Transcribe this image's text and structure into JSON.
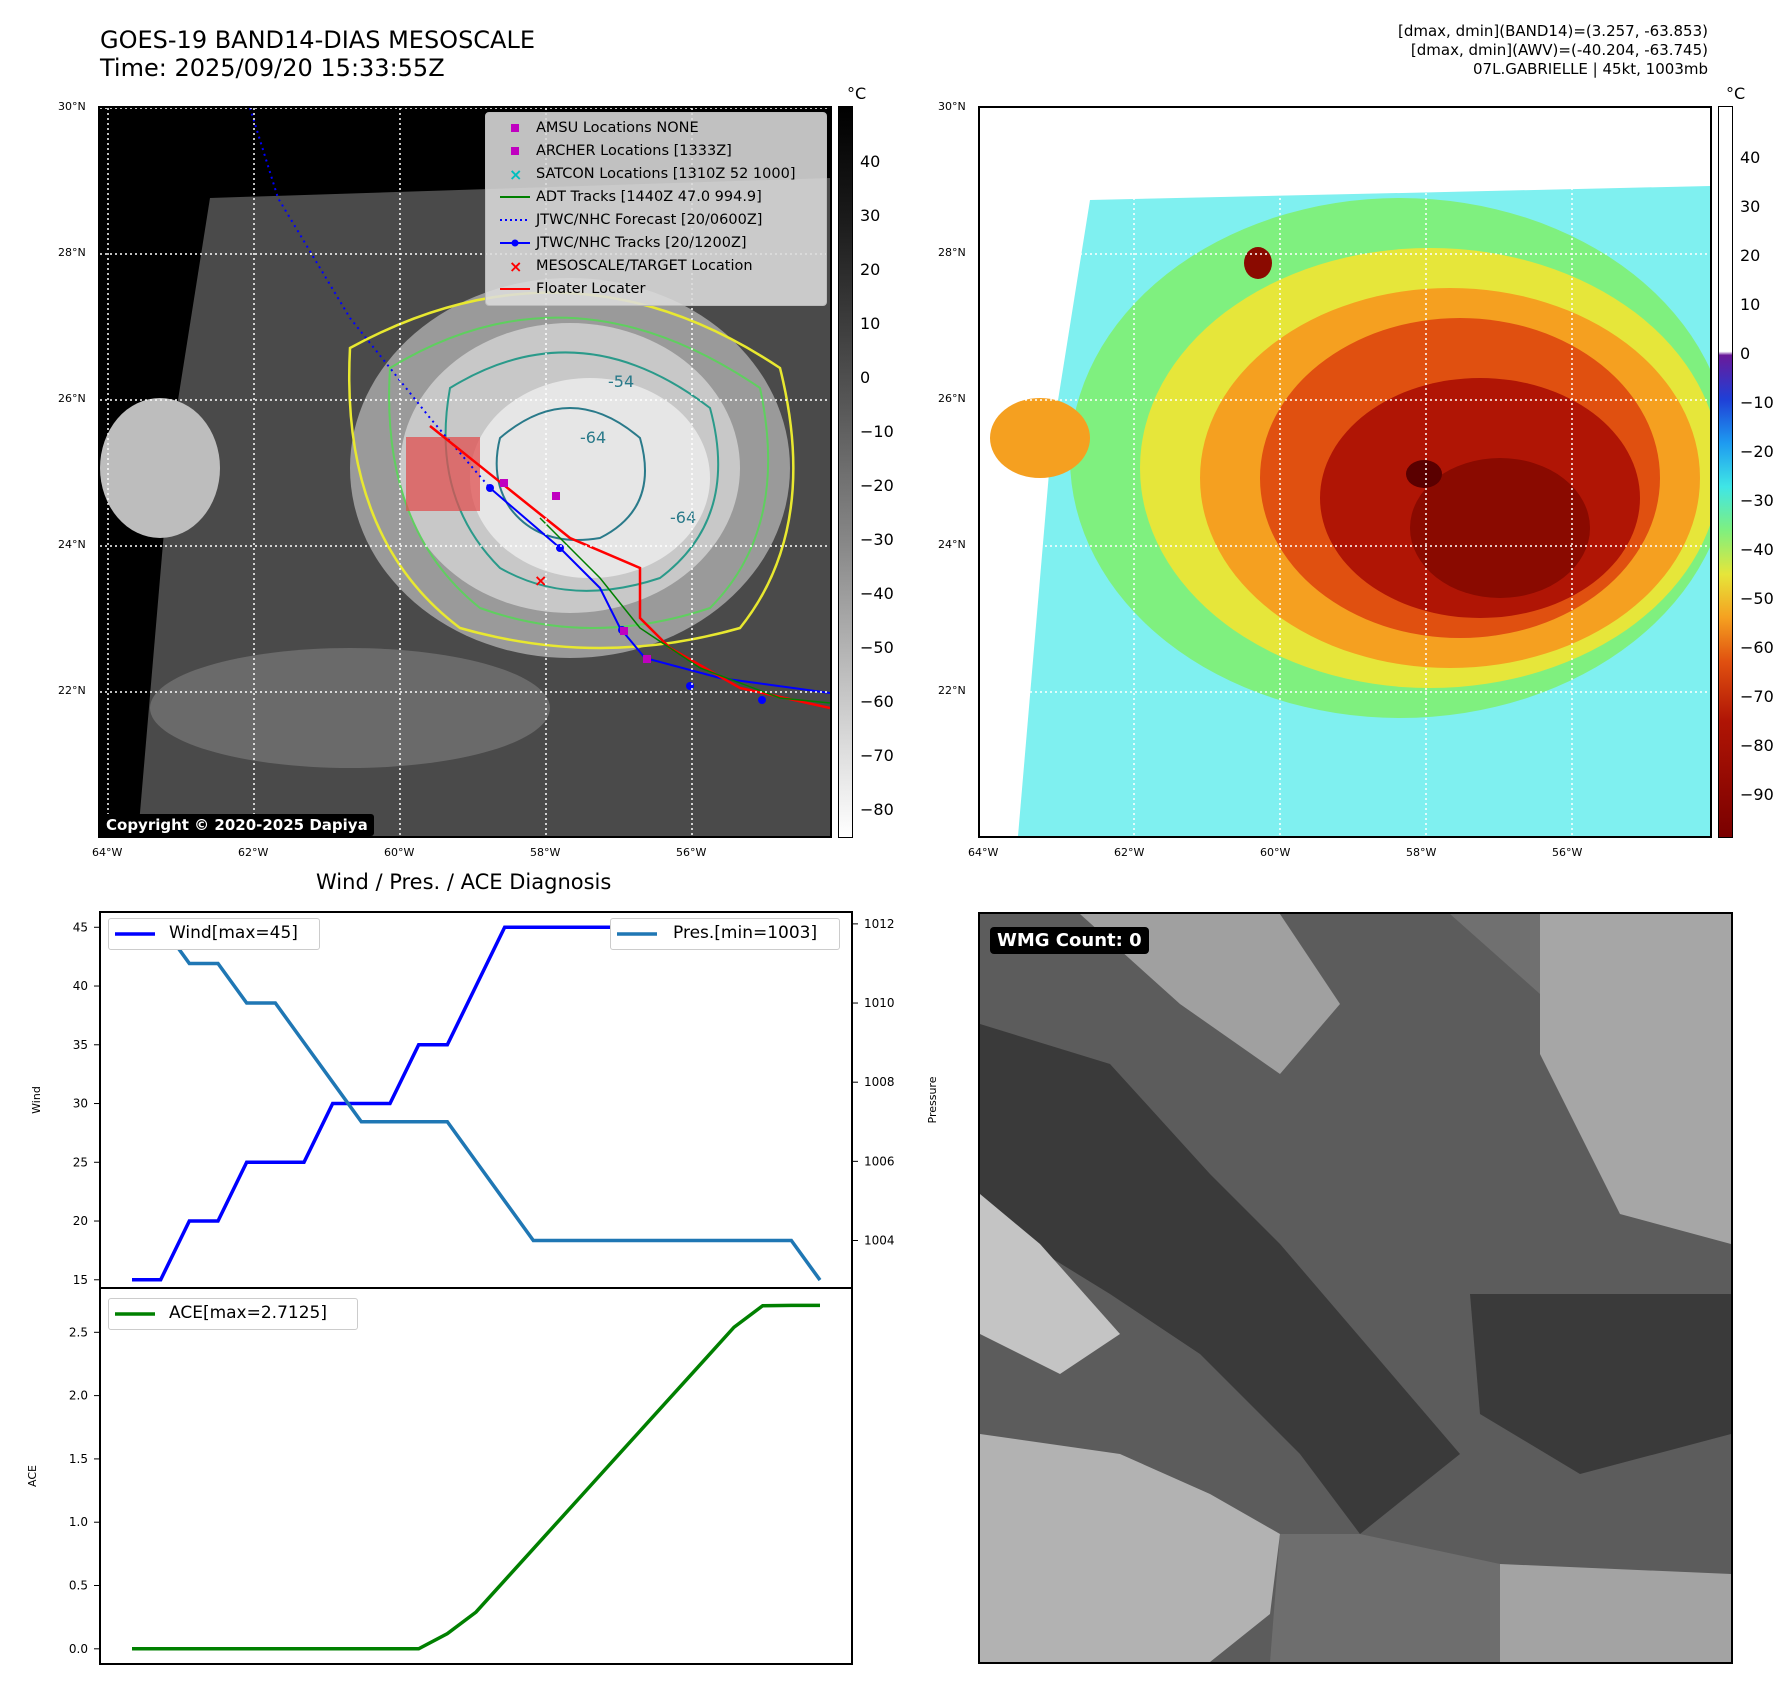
{
  "header": {
    "title_line1": "GOES-19 BAND14-DIAS MESOSCALE",
    "title_line2": "Time: 2025/09/20 15:33:55Z",
    "info_line1": "[dmax, dmin](BAND14)=(3.257, -63.853)",
    "info_line2": "[dmax, dmin](AWV)=(-40.204, -63.745)",
    "info_line3": "07L.GABRIELLE | 45kt, 1003mb"
  },
  "map": {
    "lat_labels": [
      "30°N",
      "28°N",
      "26°N",
      "24°N",
      "22°N"
    ],
    "lon_labels": [
      "64°W",
      "62°W",
      "60°W",
      "58°W",
      "56°W"
    ],
    "copyright": "Copyright © 2020-2025 Dapiya",
    "contour_labels": [
      "-54",
      "-64",
      "-64"
    ],
    "legend": [
      {
        "label": "AMSU Locations NONE",
        "color": "#c000c0",
        "marker": "square"
      },
      {
        "label": "ARCHER Locations [1333Z]",
        "color": "#c000c0",
        "marker": "square"
      },
      {
        "label": "SATCON Locations [1310Z 52 1000]",
        "color": "#00bfbf",
        "marker": "x"
      },
      {
        "label": "ADT Tracks [1440Z 47.0 994.9]",
        "color": "#008000",
        "marker": "line"
      },
      {
        "label": "JTWC/NHC Forecast [20/0600Z]",
        "color": "#0000ff",
        "marker": "dotted"
      },
      {
        "label": "JTWC/NHC Tracks [20/1200Z]",
        "color": "#0000ff",
        "marker": "line-dot"
      },
      {
        "label": "MESOSCALE/TARGET Location",
        "color": "#ff0000",
        "marker": "x"
      },
      {
        "label": "Floater Locater",
        "color": "#ff0000",
        "marker": "line"
      }
    ]
  },
  "colorbar_ir": {
    "unit": "°C",
    "ticks": [
      "40",
      "30",
      "20",
      "10",
      "0",
      "−10",
      "−20",
      "−30",
      "−40",
      "−50",
      "−60",
      "−70",
      "−80"
    ]
  },
  "colorbar_wv": {
    "unit": "°C",
    "ticks": [
      "40",
      "30",
      "20",
      "10",
      "0",
      "−10",
      "−20",
      "−30",
      "−40",
      "−50",
      "−60",
      "−70",
      "−80",
      "−90"
    ]
  },
  "diagnosis": {
    "title": "Wind / Pres. / ACE Diagnosis",
    "wind_axis_label": "Wind",
    "pressure_axis_label": "Pressure",
    "ace_axis_label": "ACE",
    "wind_legend": "Wind[max=45]",
    "pres_legend": "Pres.[min=1003]",
    "ace_legend": "ACE[max=2.7125]"
  },
  "wmg": {
    "badge": "WMG Count: 0"
  },
  "chart_data": [
    {
      "type": "line",
      "name": "wind-pressure",
      "x": [
        0,
        1,
        2,
        3,
        4,
        5,
        6,
        7,
        8,
        9,
        10,
        11,
        12,
        13,
        14,
        15,
        16,
        17,
        18,
        19,
        20,
        21,
        22,
        23,
        24
      ],
      "series": [
        {
          "name": "Wind[max=45]",
          "axis": "left",
          "color": "#0000ff",
          "values": [
            15,
            15,
            20,
            20,
            25,
            25,
            25,
            30,
            30,
            30,
            35,
            35,
            40,
            45,
            45,
            45,
            45,
            45,
            45,
            45,
            45,
            45,
            45,
            45,
            45
          ]
        },
        {
          "name": "Pres.[min=1003]",
          "axis": "right",
          "color": "#1f77b4",
          "values": [
            1012,
            1012,
            1011,
            1011,
            1010,
            1010,
            1009,
            1008,
            1007,
            1007,
            1007,
            1007,
            1006,
            1005,
            1004,
            1004,
            1004,
            1004,
            1004,
            1004,
            1004,
            1004,
            1004,
            1004,
            1003
          ]
        }
      ],
      "yticks_left": [
        15,
        20,
        25,
        30,
        35,
        40,
        45
      ],
      "yticks_right": [
        1004,
        1006,
        1008,
        1010,
        1012
      ],
      "ylim_left": [
        14.3,
        46.3
      ],
      "ylim_right": [
        1002.8,
        1012.3
      ],
      "ylabel": "Wind",
      "ylabel_right": "Pressure"
    },
    {
      "type": "line",
      "name": "ace",
      "x": [
        0,
        1,
        2,
        3,
        4,
        5,
        6,
        7,
        8,
        9,
        10,
        11,
        12,
        13,
        14,
        15,
        16,
        17,
        18,
        19,
        20,
        21,
        22,
        23,
        24
      ],
      "series": [
        {
          "name": "ACE[max=2.7125]",
          "color": "#008000",
          "values": [
            0,
            0,
            0,
            0,
            0,
            0,
            0,
            0,
            0,
            0,
            0,
            0.12,
            0.29,
            0.54,
            0.79,
            1.04,
            1.29,
            1.54,
            1.79,
            2.04,
            2.29,
            2.54,
            2.71,
            2.7125,
            2.7125
          ]
        }
      ],
      "yticks": [
        0.0,
        0.5,
        1.0,
        1.5,
        2.0,
        2.5
      ],
      "ytick_labels": [
        "0.0",
        "0.5",
        "1.0",
        "1.5",
        "2.0",
        "2.5"
      ],
      "ylim": [
        -0.12,
        2.85
      ],
      "ylabel": "ACE"
    }
  ]
}
